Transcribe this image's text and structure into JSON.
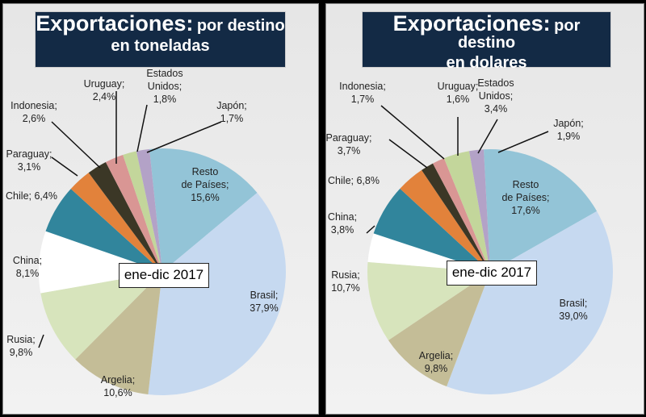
{
  "chart_data": [
    {
      "type": "pie",
      "title": "Exportaciones:",
      "subtitle": "por destino",
      "subtitle2": "en toneladas",
      "period_label": "ene-dic 2017",
      "categories": [
        "Resto de Países",
        "Brasil",
        "Argelia",
        "Rusia",
        "China",
        "Chile",
        "Paraguay",
        "Indonesia",
        "Uruguay",
        "Estados Unidos",
        "Japón"
      ],
      "values": [
        15.6,
        37.9,
        10.6,
        9.8,
        8.1,
        6.4,
        3.1,
        2.6,
        2.4,
        1.8,
        1.7
      ],
      "labels": [
        "15,6%",
        "37,9%",
        "10,6%",
        "9,8%",
        "8,1%",
        "6,4%",
        "3,1%",
        "2,6%",
        "2,4%",
        "1,8%",
        "1,7%"
      ],
      "unit": "%"
    },
    {
      "type": "pie",
      "title": "Exportaciones:",
      "subtitle": "por destino",
      "subtitle2": "en dolares",
      "period_label": "ene-dic 2017",
      "categories": [
        "Resto de Países",
        "Brasil",
        "Argelia",
        "Rusia",
        "China",
        "Chile",
        "Paraguay",
        "Indonesia",
        "Uruguay",
        "Estados Unidos",
        "Japón"
      ],
      "values": [
        17.6,
        39.0,
        9.8,
        10.7,
        3.8,
        6.8,
        3.7,
        1.7,
        1.6,
        3.4,
        1.9
      ],
      "labels": [
        "17,6%",
        "39,0%",
        "9,8%",
        "10,7%",
        "3,8%",
        "6,8%",
        "3,7%",
        "1,7%",
        "1,6%",
        "3,4%",
        "1,9%"
      ],
      "unit": "%"
    }
  ],
  "colors": [
    "#93c4d7",
    "#c6d9f0",
    "#c4bd97",
    "#d7e4bc",
    "#ffffff",
    "#31859c",
    "#e2823b",
    "#3b3726",
    "#d99694",
    "#c3d69b",
    "#b3a2c7"
  ]
}
